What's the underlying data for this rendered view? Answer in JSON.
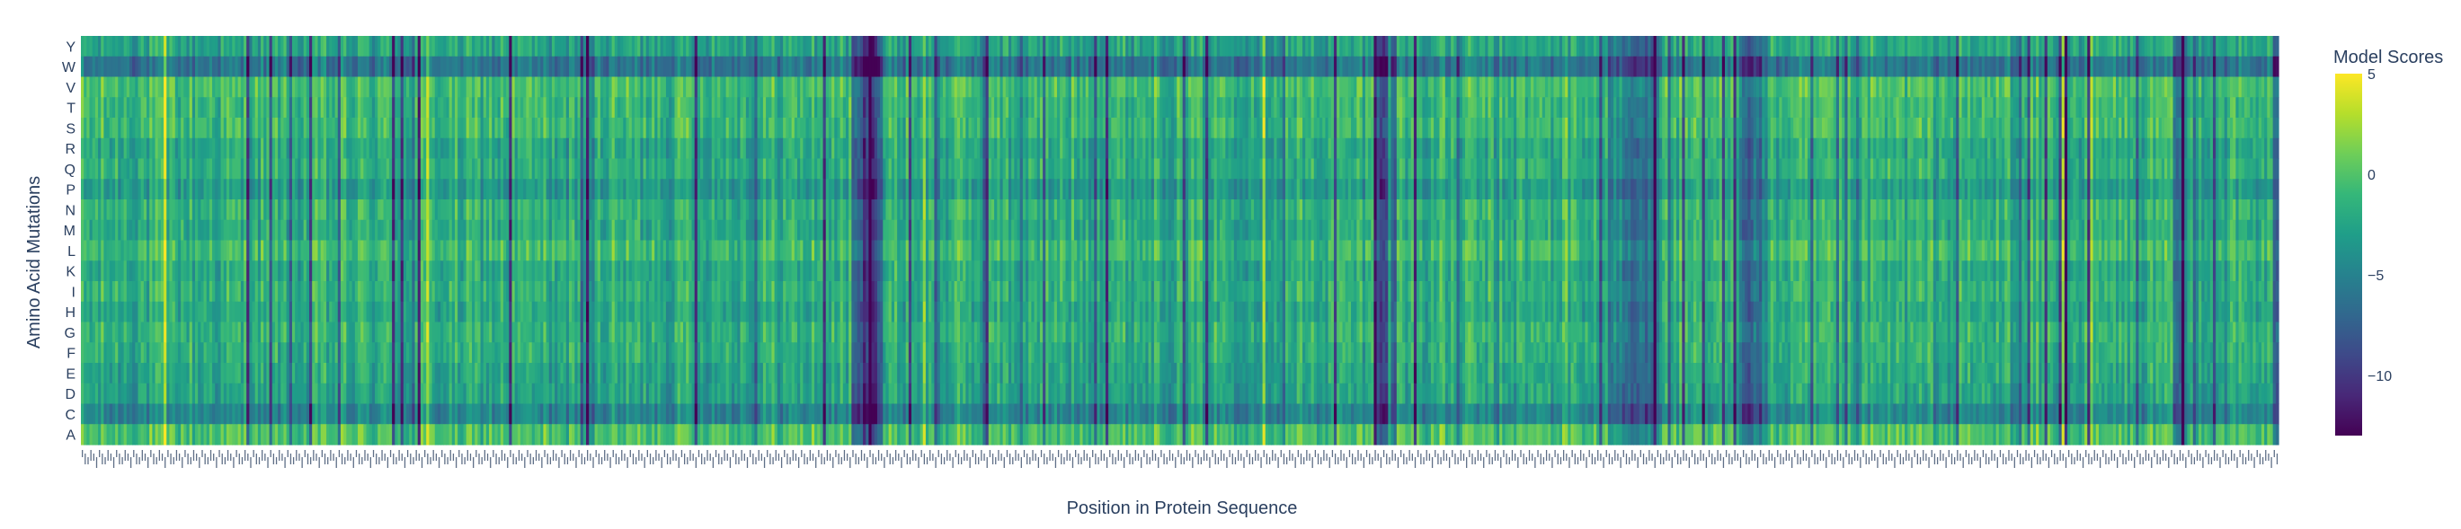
{
  "chart_data": {
    "type": "heatmap",
    "title": "",
    "xlabel": "Position in Protein Sequence",
    "ylabel": "Amino Acid Mutations",
    "y_categories_top_to_bottom": [
      "Y",
      "W",
      "V",
      "T",
      "S",
      "R",
      "Q",
      "P",
      "N",
      "M",
      "L",
      "K",
      "I",
      "H",
      "G",
      "F",
      "E",
      "D",
      "C",
      "A"
    ],
    "x_positions_count": 770,
    "x_tick_labels_note": "dense sequence position labels (too small to read)",
    "colorscale": "Viridis",
    "zlim": [
      -13,
      5
    ],
    "colorbar": {
      "title": "Model Scores",
      "ticks": [
        5,
        0,
        -5,
        -10
      ],
      "tick_labels": [
        "5",
        "0",
        "−5",
        "−10"
      ]
    },
    "row_baseline_scores": {
      "Y": -2.5,
      "W": -6.0,
      "V": -0.5,
      "T": -1.2,
      "S": -1.0,
      "R": -2.2,
      "Q": -1.8,
      "P": -3.2,
      "N": -1.5,
      "M": -2.0,
      "L": -0.8,
      "K": -2.0,
      "I": -1.6,
      "H": -2.2,
      "G": -1.5,
      "F": -1.8,
      "E": -2.4,
      "D": -2.6,
      "C": -4.8,
      "A": -0.3
    },
    "column_effects": [
      {
        "position_fraction": 0.357,
        "score_offset": -9.0,
        "width_fraction": 0.012
      },
      {
        "position_fraction": 0.593,
        "score_offset": -7.5,
        "width_fraction": 0.008
      },
      {
        "position_fraction": 0.955,
        "score_offset": -6.0,
        "width_fraction": 0.004
      },
      {
        "position_fraction": 0.706,
        "score_offset": -5.0,
        "width_fraction": 0.02
      },
      {
        "position_fraction": 0.76,
        "score_offset": -5.5,
        "width_fraction": 0.01
      }
    ]
  },
  "colors": {
    "viridis_stops": [
      "#440154",
      "#482878",
      "#3e4989",
      "#31688e",
      "#26828e",
      "#1f9e89",
      "#35b779",
      "#6ece58",
      "#b5de2b",
      "#fde725"
    ],
    "text": "#2a3f5f"
  }
}
